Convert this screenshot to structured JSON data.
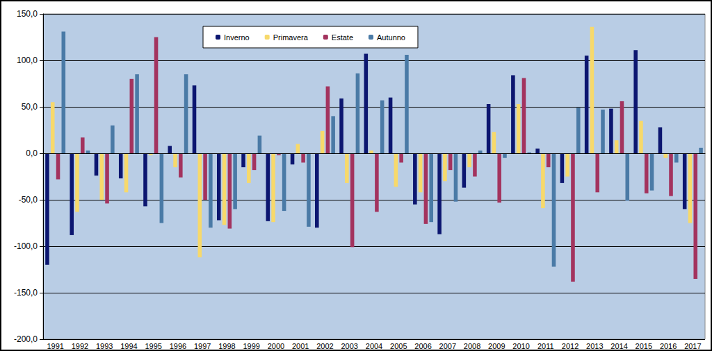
{
  "chart_data": {
    "type": "bar",
    "categories": [
      "1991",
      "1992",
      "1993",
      "1994",
      "1995",
      "1996",
      "1997",
      "1998",
      "1999",
      "2000",
      "2001",
      "2002",
      "2003",
      "2004",
      "2005",
      "2006",
      "2007",
      "2008",
      "2009",
      "2010",
      "2011",
      "2012",
      "2013",
      "2014",
      "2015",
      "2016",
      "2017"
    ],
    "series": [
      {
        "name": "Inverno",
        "color": "#0c1670",
        "values": [
          -120,
          -88,
          -24,
          -27,
          -57,
          8,
          73,
          -72,
          -15,
          -73,
          -12,
          -80,
          59,
          107,
          60,
          -55,
          -87,
          -37,
          53,
          84,
          5,
          -32,
          105,
          48,
          111,
          28,
          -60
        ]
      },
      {
        "name": "Primavera",
        "color": "#f7d96b",
        "values": [
          55,
          -63,
          -50,
          -42,
          -2,
          -15,
          -112,
          -77,
          -32,
          -74,
          10,
          24,
          -32,
          3,
          -36,
          -42,
          -30,
          -15,
          23,
          53,
          -59,
          -25,
          136,
          14,
          35,
          -5,
          -75
        ]
      },
      {
        "name": "Estate",
        "color": "#a3335e",
        "values": [
          -28,
          17,
          -54,
          80,
          125,
          -26,
          -50,
          -81,
          -18,
          -2,
          -10,
          72,
          -101,
          -63,
          -10,
          -76,
          -18,
          -25,
          -53,
          81,
          -15,
          -138,
          -42,
          56,
          -43,
          -46,
          -135
        ]
      },
      {
        "name": "Autunno",
        "color": "#4a7aa6",
        "values": [
          131,
          3,
          30,
          85,
          -75,
          85,
          -80,
          -60,
          19,
          -62,
          -79,
          40,
          86,
          57,
          106,
          -74,
          -52,
          3,
          -5,
          1,
          -122,
          49,
          47,
          -51,
          -40,
          -10,
          6
        ]
      }
    ],
    "ylim": [
      -200,
      150
    ],
    "yticks": [
      {
        "value": -200,
        "label": "-200,0"
      },
      {
        "value": -150,
        "label": "-150,0"
      },
      {
        "value": -100,
        "label": "-100,0"
      },
      {
        "value": -50,
        "label": "-50,0"
      },
      {
        "value": 0,
        "label": "0,0"
      },
      {
        "value": 50,
        "label": "50,0"
      },
      {
        "value": 100,
        "label": "100,0"
      },
      {
        "value": 150,
        "label": "150,0"
      }
    ],
    "grid": true,
    "legend": "top"
  }
}
